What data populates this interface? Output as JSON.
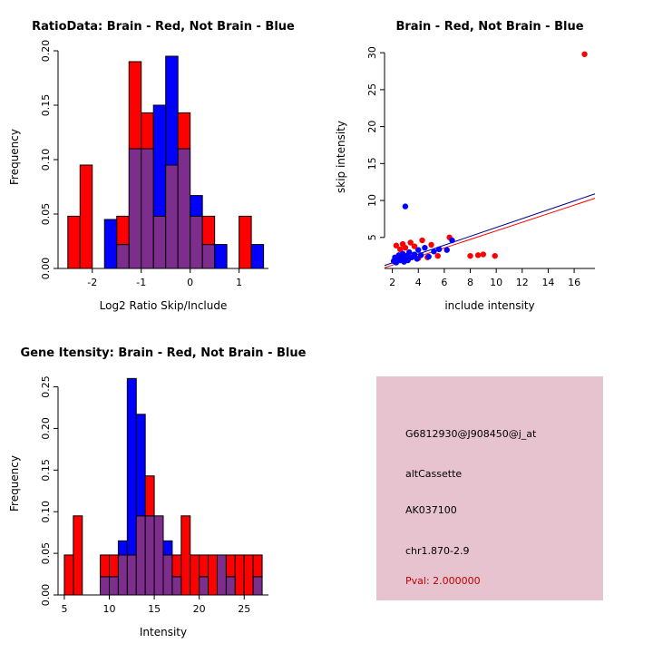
{
  "chart_data": [
    {
      "type": "bar",
      "variant": "overlaid-histogram",
      "title": "RatioData: Brain - Red, Not Brain - Blue",
      "xlabel": "Log2 Ratio Skip/Include",
      "ylabel": "Frequency",
      "xlim": [
        -2.7,
        1.6
      ],
      "ylim": [
        0,
        0.205
      ],
      "xticks": [
        -2,
        -1,
        0,
        1
      ],
      "xtick_labels": [
        "-2",
        "-1",
        "0",
        "1"
      ],
      "yticks": [
        0,
        0.05,
        0.1,
        0.15,
        0.2
      ],
      "ytick_labels": [
        "0.00",
        "0.05",
        "0.10",
        "0.15",
        "0.20"
      ],
      "bin_width": 0.25,
      "bin_starts": [
        -2.5,
        -2.25,
        -2.0,
        -1.75,
        -1.5,
        -1.25,
        -1.0,
        -0.75,
        -0.5,
        -0.25,
        0,
        0.25,
        0.5,
        0.75,
        1.0,
        1.25
      ],
      "series": [
        {
          "name": "Brain",
          "color": "#FF0000",
          "values": [
            0.048,
            0.095,
            0,
            0,
            0.048,
            0.19,
            0.143,
            0.048,
            0.095,
            0.143,
            0.048,
            0.048,
            0,
            0,
            0.048,
            0
          ]
        },
        {
          "name": "Not Brain",
          "color": "#0000FF",
          "values": [
            0,
            0,
            0,
            0.045,
            0.022,
            0.11,
            0.11,
            0.15,
            0.195,
            0.11,
            0.067,
            0.022,
            0.022,
            0,
            0,
            0.022
          ]
        }
      ],
      "overlap_color": "#7D2E8C",
      "grid": false,
      "legend": "none"
    },
    {
      "type": "scatter",
      "title": "Brain - Red, Not Brain - Blue",
      "xlabel": "include intensity",
      "ylabel": "skip intensity",
      "xlim": [
        1.4,
        17.6
      ],
      "ylim": [
        0.8,
        31
      ],
      "xticks": [
        2,
        4,
        6,
        8,
        10,
        12,
        14,
        16
      ],
      "xtick_labels": [
        "2",
        "4",
        "6",
        "8",
        "10",
        "12",
        "14",
        "16"
      ],
      "yticks": [
        5,
        10,
        15,
        20,
        25,
        30
      ],
      "ytick_labels": [
        "5",
        "10",
        "15",
        "20",
        "25",
        "30"
      ],
      "series": [
        {
          "name": "Brain",
          "color": "#FF0000",
          "points": [
            [
              2.3,
              3.9
            ],
            [
              2.6,
              3.4
            ],
            [
              2.8,
              4.1
            ],
            [
              3.0,
              3.6
            ],
            [
              3.2,
              2.4
            ],
            [
              3.4,
              4.3
            ],
            [
              3.7,
              3.8
            ],
            [
              4.0,
              2.2
            ],
            [
              4.3,
              4.6
            ],
            [
              4.7,
              2.3
            ],
            [
              5.0,
              4.0
            ],
            [
              5.5,
              2.5
            ],
            [
              6.4,
              5.0
            ],
            [
              8.0,
              2.5
            ],
            [
              8.6,
              2.6
            ],
            [
              9.0,
              2.7
            ],
            [
              9.9,
              2.5
            ],
            [
              16.8,
              29.8
            ]
          ]
        },
        {
          "name": "Not Brain",
          "color": "#0000FF",
          "points": [
            [
              2.1,
              1.8
            ],
            [
              2.2,
              2.3
            ],
            [
              2.3,
              1.6
            ],
            [
              2.4,
              2.0
            ],
            [
              2.5,
              2.6
            ],
            [
              2.6,
              1.9
            ],
            [
              2.7,
              2.2
            ],
            [
              2.8,
              2.8
            ],
            [
              2.9,
              1.7
            ],
            [
              3.0,
              2.1
            ],
            [
              3.0,
              9.2
            ],
            [
              3.1,
              2.5
            ],
            [
              3.2,
              1.9
            ],
            [
              3.3,
              3.0
            ],
            [
              3.5,
              2.3
            ],
            [
              3.7,
              2.7
            ],
            [
              3.9,
              2.1
            ],
            [
              4.0,
              3.3
            ],
            [
              4.2,
              2.6
            ],
            [
              4.5,
              3.6
            ],
            [
              4.8,
              2.4
            ],
            [
              5.2,
              3.1
            ],
            [
              5.6,
              3.4
            ],
            [
              6.2,
              3.3
            ],
            [
              6.6,
              4.6
            ]
          ]
        }
      ],
      "lines": [
        {
          "name": "brain-fit-line",
          "color": "#FF0000",
          "x1": 1.4,
          "y1": 0.9,
          "x2": 17.6,
          "y2": 10.3
        },
        {
          "name": "not-brain-fit-line",
          "color": "#00008B",
          "x1": 1.4,
          "y1": 1.2,
          "x2": 17.6,
          "y2": 10.9
        }
      ],
      "grid": false,
      "legend": "none"
    },
    {
      "type": "bar",
      "variant": "overlaid-histogram",
      "title": "Gene Itensity: Brain - Red, Not Brain - Blue",
      "xlabel": "Intensity",
      "ylabel": "Frequency",
      "xlim": [
        4.3,
        27.7
      ],
      "ylim": [
        0,
        0.268
      ],
      "xticks": [
        5,
        10,
        15,
        20,
        25
      ],
      "xtick_labels": [
        "5",
        "10",
        "15",
        "20",
        "25"
      ],
      "yticks": [
        0,
        0.05,
        0.1,
        0.15,
        0.2,
        0.25
      ],
      "ytick_labels": [
        "0.00",
        "0.05",
        "0.10",
        "0.15",
        "0.20",
        "0.25"
      ],
      "bin_width": 1,
      "bin_starts": [
        5,
        6,
        7,
        8,
        9,
        10,
        11,
        12,
        13,
        14,
        15,
        16,
        17,
        18,
        19,
        20,
        21,
        22,
        23,
        24,
        25,
        26
      ],
      "series": [
        {
          "name": "Brain",
          "color": "#FF0000",
          "values": [
            0.048,
            0.095,
            0,
            0,
            0.048,
            0.048,
            0.048,
            0.048,
            0.095,
            0.143,
            0.095,
            0.048,
            0.048,
            0.095,
            0.048,
            0.048,
            0.048,
            0.048,
            0.048,
            0.048,
            0.048,
            0.048
          ]
        },
        {
          "name": "Not Brain",
          "color": "#0000FF",
          "values": [
            0,
            0,
            0,
            0,
            0.022,
            0.022,
            0.065,
            0.26,
            0.217,
            0.095,
            0.095,
            0.065,
            0.022,
            0,
            0,
            0.022,
            0,
            0.048,
            0.022,
            0,
            0,
            0.022
          ]
        }
      ],
      "overlap_color": "#7D2E8C",
      "grid": false,
      "legend": "none"
    }
  ],
  "info_panel": {
    "background_color": "#E7C3CF",
    "lines": [
      {
        "id": "probe-id",
        "text": "G6812930@J908450@j_at",
        "color": "#000000"
      },
      {
        "id": "splice-type",
        "text": "altCassette",
        "color": "#000000"
      },
      {
        "id": "accession",
        "text": "AK037100",
        "color": "#000000"
      },
      {
        "id": "location",
        "text": "chr1.870-2.9",
        "color": "#000000"
      },
      {
        "id": "pvalue",
        "text": "Pval: 2.000000",
        "color": "#C00000"
      }
    ]
  }
}
